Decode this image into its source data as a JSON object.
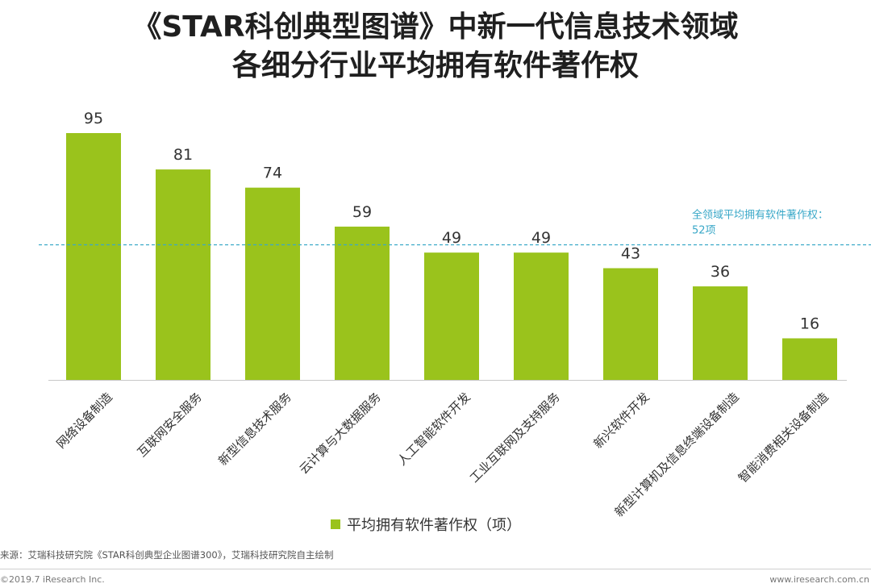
{
  "chart_data": {
    "type": "bar",
    "title_line1": "《STAR科创典型图谱》中新一代信息技术领域",
    "title_line2": "各细分行业平均拥有软件著作权",
    "categories": [
      "网络设备制造",
      "互联网安全服务",
      "新型信息技术服务",
      "云计算与大数据服务",
      "人工智能软件开发",
      "工业互联网及支持服务",
      "新兴软件开发",
      "新型计算机及信息终端设备制造",
      "智能消费相关设备制造"
    ],
    "series": [
      {
        "name": "平均拥有软件著作权（项）",
        "values": [
          95,
          81,
          74,
          59,
          49,
          49,
          43,
          36,
          16
        ]
      }
    ],
    "ylim": [
      0,
      95
    ],
    "average": {
      "value": 52,
      "label_line1": "全领域平均拥有软件著作权：",
      "label_line2": "52项"
    },
    "legend_position": "bottom-center",
    "colors": {
      "bar": "#9ac31c",
      "average_line": "#3aa8c8",
      "axis": "#c8c8c8"
    }
  },
  "source": "来源：艾瑞科技研究院《STAR科创典型企业图谱300》，艾瑞科技研究院自主绘制",
  "footer": {
    "copyright": "©2019.7 iResearch Inc.",
    "website": "www.iresearch.com.cn"
  }
}
